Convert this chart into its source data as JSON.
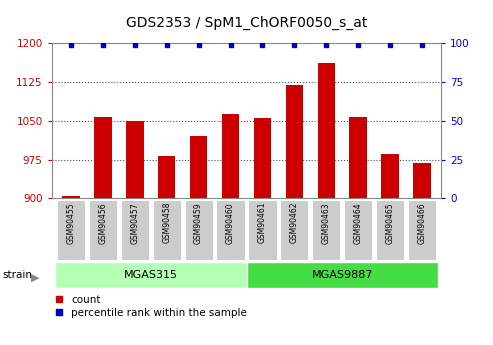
{
  "title": "GDS2353 / SpM1_ChORF0050_s_at",
  "samples": [
    "GSM90455",
    "GSM90456",
    "GSM90457",
    "GSM90458",
    "GSM90459",
    "GSM90460",
    "GSM90461",
    "GSM90462",
    "GSM90463",
    "GSM90464",
    "GSM90465",
    "GSM90466"
  ],
  "counts": [
    905,
    1058,
    1050,
    982,
    1020,
    1063,
    1055,
    1120,
    1162,
    1058,
    985,
    968
  ],
  "percentiles": [
    99,
    99,
    99,
    99,
    99,
    99,
    99,
    99,
    99,
    99,
    99,
    99
  ],
  "groups": [
    {
      "label": "MGAS315",
      "indices": [
        0,
        1,
        2,
        3,
        4,
        5
      ],
      "color": "#b3ffb3"
    },
    {
      "label": "MGAS9887",
      "indices": [
        6,
        7,
        8,
        9,
        10,
        11
      ],
      "color": "#44dd44"
    }
  ],
  "bar_color": "#cc0000",
  "dot_color": "#0000cc",
  "ylim_left": [
    900,
    1200
  ],
  "ylim_right": [
    0,
    100
  ],
  "yticks_left": [
    900,
    975,
    1050,
    1125,
    1200
  ],
  "yticks_right": [
    0,
    25,
    50,
    75,
    100
  ],
  "tick_color_left": "#cc0000",
  "tick_color_right": "#0000cc",
  "bg_plot": "#ffffff",
  "title_fontsize": 10,
  "bar_width": 0.55
}
